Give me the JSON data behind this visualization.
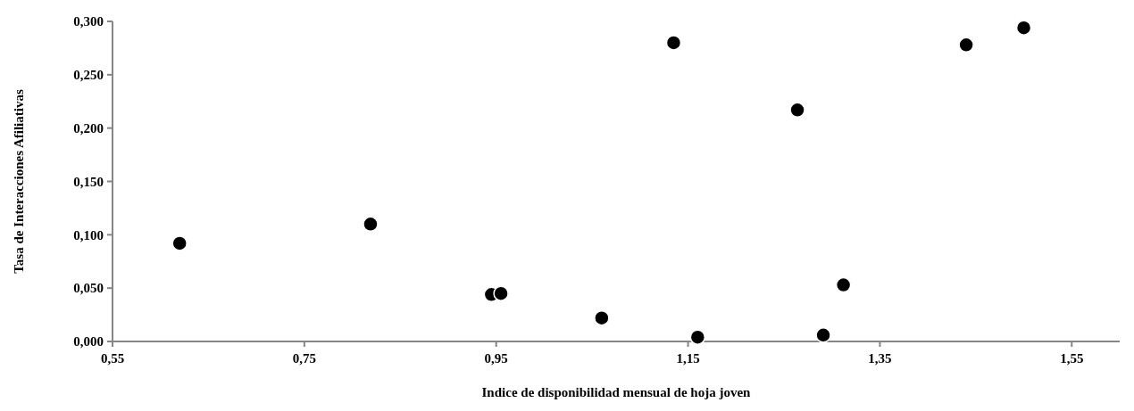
{
  "chart_data": {
    "type": "scatter",
    "xlabel": "Indice de disponibilidad mensual de hoja joven",
    "ylabel": "Tasa de Interacciones Afiliativas",
    "x": [
      0.62,
      0.819,
      0.945,
      0.955,
      1.06,
      1.16,
      1.291,
      1.312,
      1.135,
      1.264,
      1.44,
      1.5
    ],
    "series": [
      {
        "color": "#000000",
        "values": [
          0.092,
          0.11,
          0.044,
          0.045,
          0.022,
          0.004,
          0.006,
          0.053,
          0.28,
          0.217,
          0.278,
          0.294
        ]
      }
    ],
    "xlim": [
      0.55,
      1.6
    ],
    "xticks": [
      {
        "value": 0.55,
        "label": "0,55"
      },
      {
        "value": 0.75,
        "label": "0,75"
      },
      {
        "value": 0.95,
        "label": "0,95"
      },
      {
        "value": 1.15,
        "label": "1,15"
      },
      {
        "value": 1.35,
        "label": "1,35"
      },
      {
        "value": 1.55,
        "label": "1,55"
      }
    ],
    "ylim": [
      0,
      0.3
    ],
    "yticks": [
      {
        "value": 0,
        "label": "0,000"
      },
      {
        "value": 0.05,
        "label": "0,050"
      },
      {
        "value": 0.1,
        "label": "0,100"
      },
      {
        "value": 0.15,
        "label": "0,150"
      },
      {
        "value": 0.2,
        "label": "0,200"
      },
      {
        "value": 0.25,
        "label": "0,250"
      },
      {
        "value": 0.3,
        "label": "0,300"
      }
    ],
    "grid": false,
    "marker": "circle"
  }
}
